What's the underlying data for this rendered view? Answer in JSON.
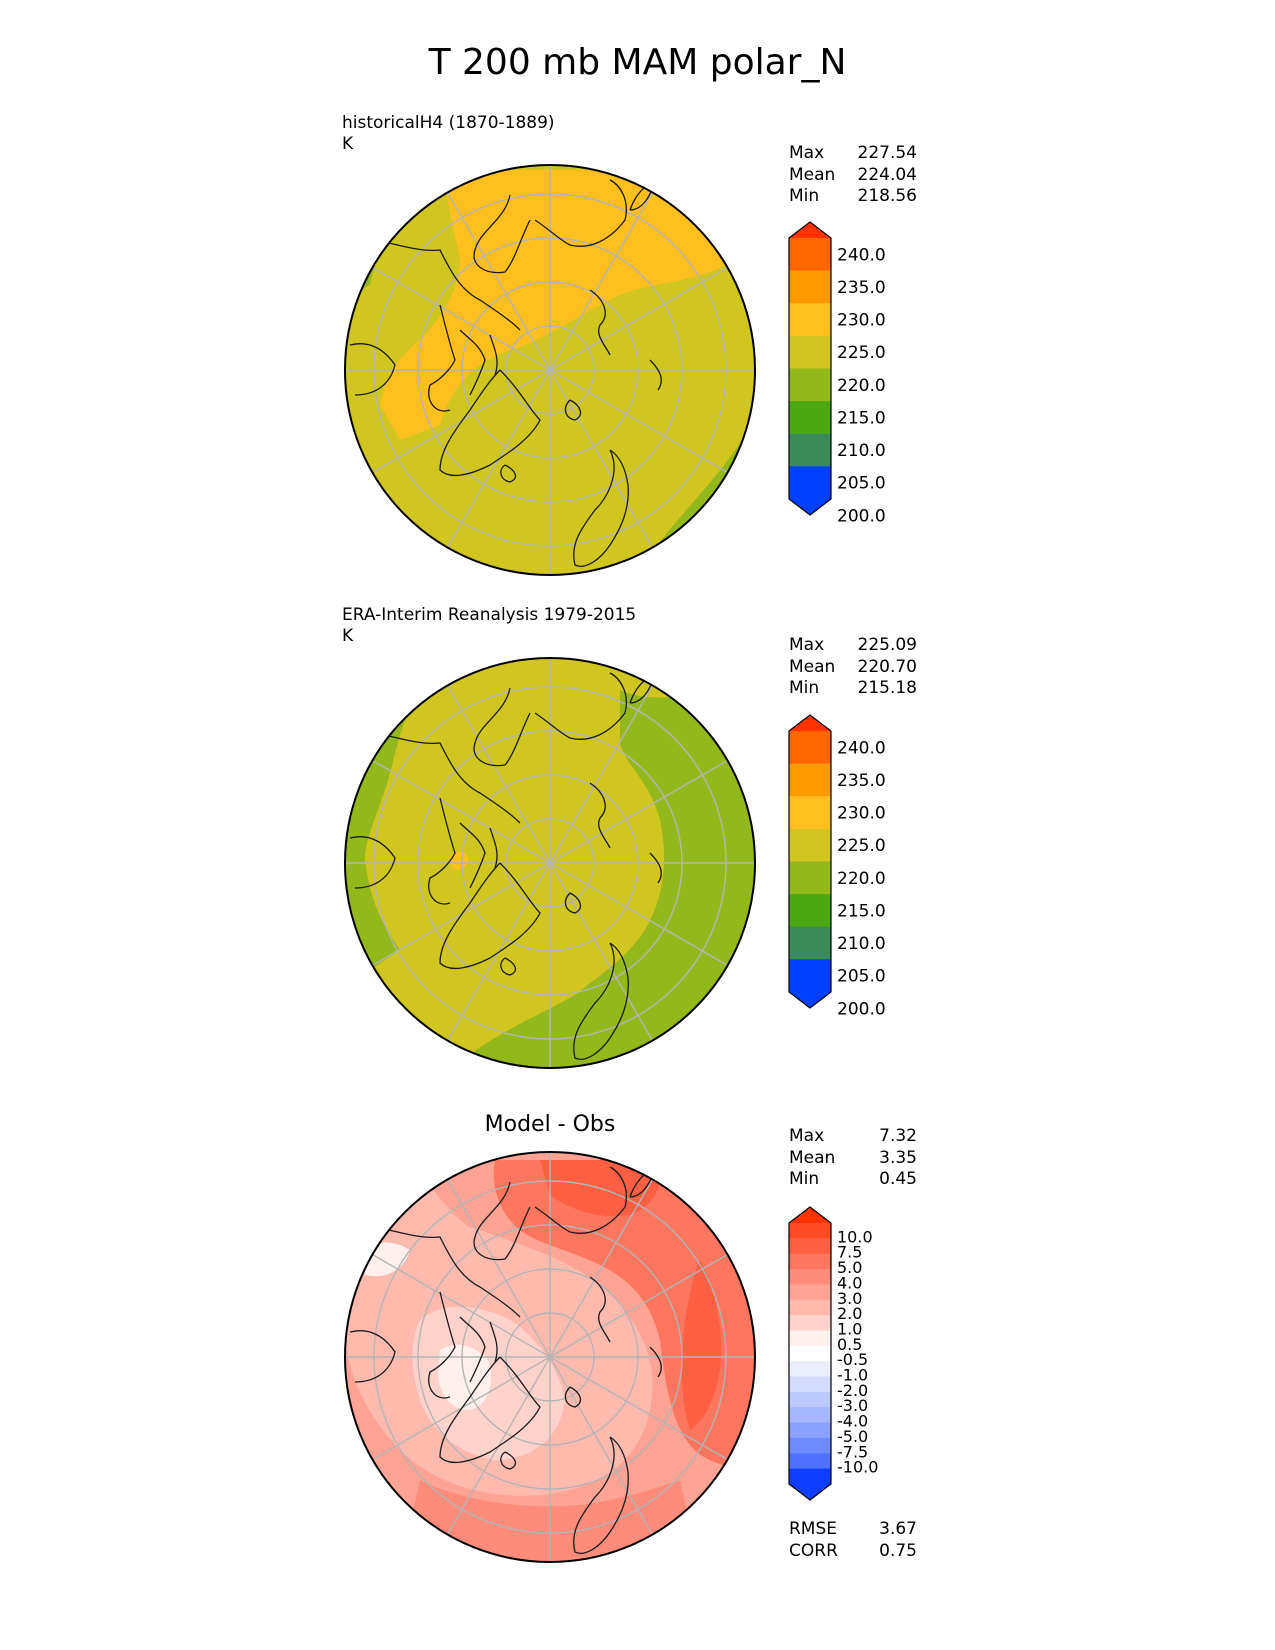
{
  "main_title": "T 200 mb MAM polar_N",
  "panels": [
    {
      "label": "historicalH4 (1870-1889)",
      "units": "K",
      "stats": [
        {
          "name": "Max",
          "value": "227.54"
        },
        {
          "name": "Mean",
          "value": "224.04"
        },
        {
          "name": "Min",
          "value": "218.56"
        }
      ]
    },
    {
      "label": "ERA-Interim Reanalysis 1979-2015",
      "units": "K",
      "stats": [
        {
          "name": "Max",
          "value": "225.09"
        },
        {
          "name": "Mean",
          "value": "220.70"
        },
        {
          "name": "Min",
          "value": "215.18"
        }
      ]
    },
    {
      "title": "Model - Obs",
      "stats": [
        {
          "name": "Max",
          "value": "7.32"
        },
        {
          "name": "Mean",
          "value": "3.35"
        },
        {
          "name": "Min",
          "value": "0.45"
        }
      ],
      "metrics": [
        {
          "name": "RMSE",
          "value": "3.67"
        },
        {
          "name": "CORR",
          "value": "0.75"
        }
      ]
    }
  ],
  "colorbar_abs": {
    "labels": [
      "240.0",
      "235.0",
      "230.0",
      "225.0",
      "220.0",
      "215.0",
      "210.0",
      "205.0",
      "200.0"
    ],
    "colors_top_to_bottom": [
      "#ff3300",
      "#ff6600",
      "#ff9900",
      "#ffbf1f",
      "#d1c51f",
      "#93b81b",
      "#4ca811",
      "#3a8a5a",
      "#0069a0",
      "#0040ff"
    ]
  },
  "colorbar_diff": {
    "labels": [
      "10.0",
      "7.5",
      "5.0",
      "4.0",
      "3.0",
      "2.0",
      "1.0",
      "0.5",
      "-0.5",
      "-1.0",
      "-2.0",
      "-3.0",
      "-4.0",
      "-5.0",
      "-7.5",
      "-10.0"
    ],
    "colors_top_to_bottom": [
      "#ff3300",
      "#ff4a22",
      "#ff6044",
      "#ff7660",
      "#ff8c7a",
      "#ffa394",
      "#ffbaae",
      "#ffd3cc",
      "#fff0ee",
      "#ffffff",
      "#eaeeff",
      "#d3dcff",
      "#bcc9ff",
      "#a4b6ff",
      "#8aa1ff",
      "#6e8aff",
      "#4f71ff",
      "#2e57ff",
      "#0f3dff"
    ]
  },
  "maps": {
    "abs_colors": {
      "c220": "#d1c51f",
      "c225": "#ffbf1f",
      "c215": "#93b81b"
    },
    "diff_colors": {
      "d1": "#ffd3cc",
      "d2": "#ffbaae",
      "d3": "#ffa394",
      "d4": "#ff8c7a",
      "d5": "#ff7660",
      "d7": "#ff6044",
      "d0": "#fff0ee"
    }
  }
}
